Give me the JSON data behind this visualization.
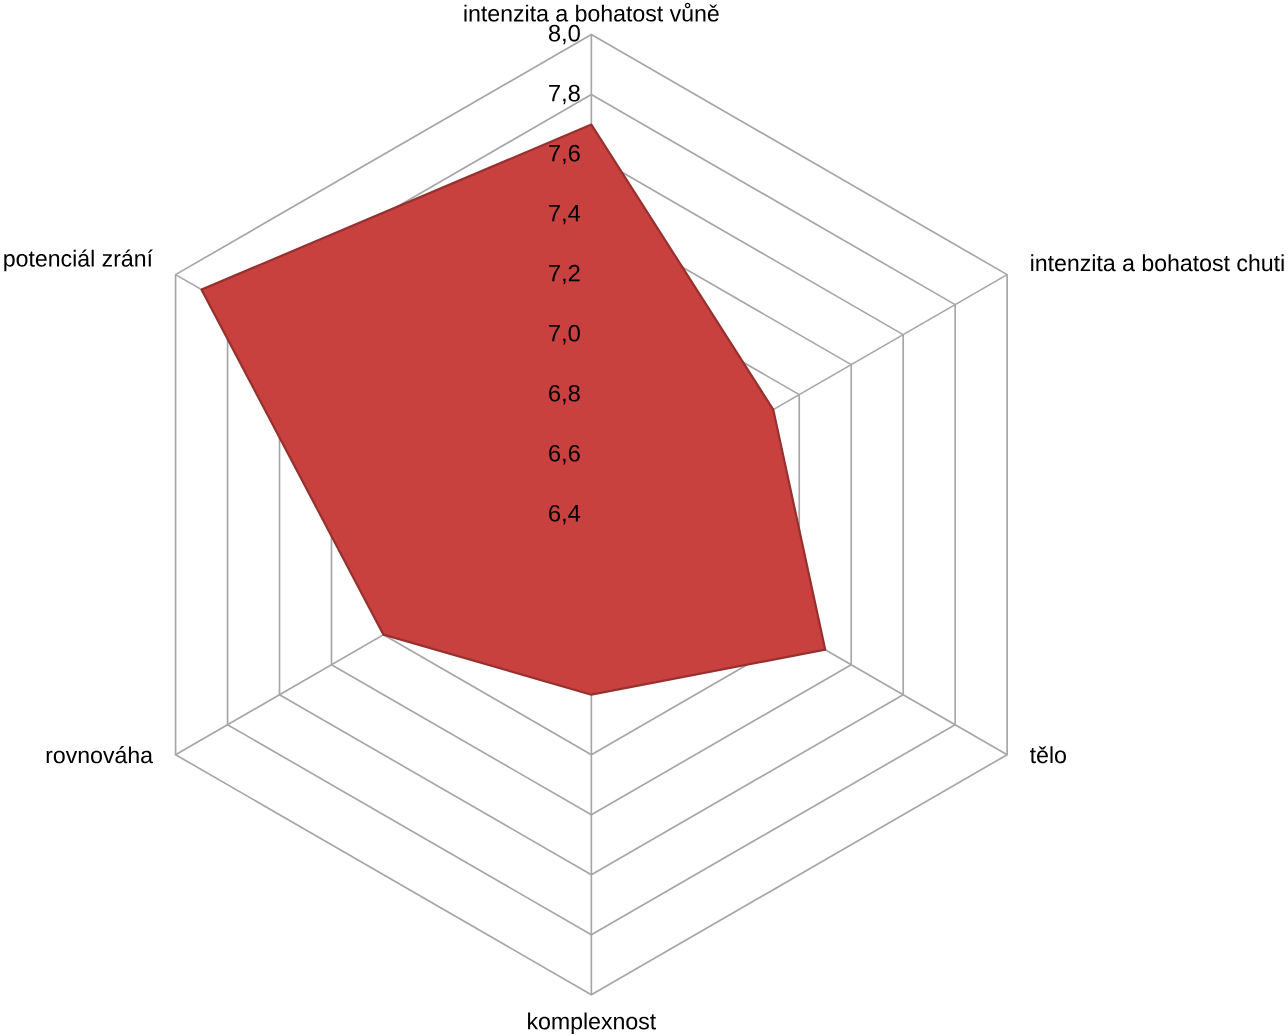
{
  "chart_data": {
    "type": "radar",
    "categories": [
      "intenzita a bohatost vůně",
      "intenzita a bohatost chuti",
      "tělo",
      "komplexnost",
      "rovnováha",
      "potenciál zrání"
    ],
    "series": [
      {
        "color": "#c8413f",
        "values": [
          7.7,
          7.1,
          7.3,
          7.0,
          7.2,
          7.9
        ]
      }
    ],
    "ylim": [
      6.4,
      8.0
    ],
    "yticks": [
      {
        "value": 6.4,
        "label": "6,4"
      },
      {
        "value": 6.6,
        "label": "6,6"
      },
      {
        "value": 6.8,
        "label": "6,8"
      },
      {
        "value": 7.0,
        "label": "7,0"
      },
      {
        "value": 7.2,
        "label": "7,2"
      },
      {
        "value": 7.4,
        "label": "7,4"
      },
      {
        "value": 7.6,
        "label": "7,6"
      },
      {
        "value": 7.8,
        "label": "7,8"
      },
      {
        "value": 8.0,
        "label": "8,0"
      }
    ],
    "grid": true
  }
}
